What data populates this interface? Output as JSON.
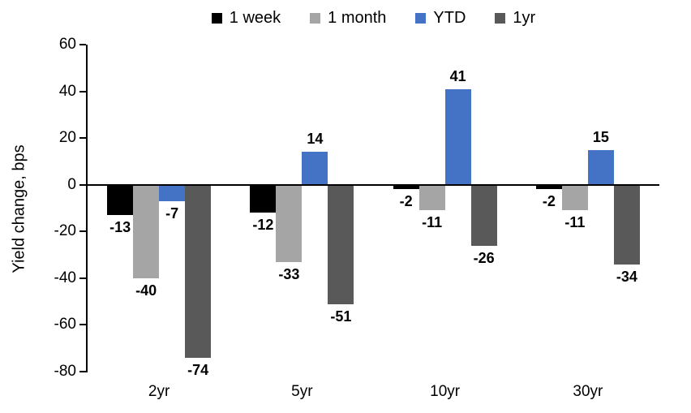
{
  "chart_data": {
    "type": "bar",
    "title": "",
    "xlabel": "",
    "ylabel": "Yield change, bps",
    "categories": [
      "2yr",
      "5yr",
      "10yr",
      "30yr"
    ],
    "series": [
      {
        "name": "1 week",
        "color": "#000000",
        "values": [
          -13,
          -12,
          -2,
          -2
        ]
      },
      {
        "name": "1 month",
        "color": "#A5A5A5",
        "values": [
          -40,
          -33,
          -11,
          -11
        ]
      },
      {
        "name": "YTD",
        "color": "#4472C4",
        "values": [
          -7,
          14,
          41,
          15
        ]
      },
      {
        "name": "1yr",
        "color": "#595959",
        "values": [
          -74,
          -51,
          -26,
          -34
        ]
      }
    ],
    "ylim": [
      -80,
      60
    ],
    "ytick_step": 20,
    "yticks": [
      60,
      40,
      20,
      0,
      -20,
      -40,
      -60,
      -80
    ],
    "grid": false,
    "legend_position": "top",
    "data_labels": "outside-end",
    "axis_color": "#000000"
  }
}
